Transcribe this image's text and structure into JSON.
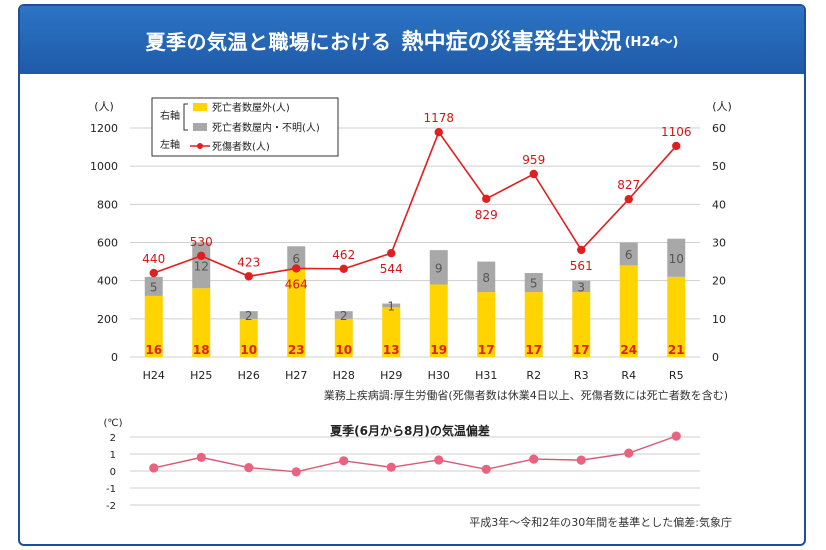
{
  "title": {
    "main": "夏季の気温と職場における",
    "strong": "熱中症の災害発生状況",
    "suffix": "(H24〜)"
  },
  "colors": {
    "header": "#1f5aa9",
    "bar_outside": "#ffd400",
    "bar_inside": "#a8a8a8",
    "line": "#e02020",
    "temp_line": "#d45a75",
    "temp_dot": "#e9637e"
  },
  "legend": {
    "right_axis_label": "右軸",
    "left_axis_label": "左軸",
    "items": [
      {
        "label": "死亡者数屋外(人)",
        "color": "#ffd400",
        "kind": "bar"
      },
      {
        "label": "死亡者数屋内・不明(人)",
        "color": "#a8a8a8",
        "kind": "bar"
      },
      {
        "label": "死傷者数(人)",
        "color": "#e02020",
        "kind": "line"
      }
    ]
  },
  "chart_data": [
    {
      "type": "bar+line",
      "categories": [
        "H24",
        "H25",
        "H26",
        "H27",
        "H28",
        "H29",
        "H30",
        "H31",
        "R2",
        "R3",
        "R4",
        "R5"
      ],
      "series": [
        {
          "name": "死亡者数屋外(人)",
          "axis": "right",
          "values": [
            16,
            18,
            10,
            23,
            10,
            13,
            19,
            17,
            17,
            17,
            24,
            21
          ]
        },
        {
          "name": "死亡者数屋内・不明(人)",
          "axis": "right",
          "values": [
            5,
            12,
            2,
            6,
            2,
            1,
            9,
            8,
            5,
            3,
            6,
            10
          ]
        },
        {
          "name": "死傷者数(人)",
          "axis": "left",
          "values": [
            440,
            530,
            423,
            464,
            462,
            544,
            1178,
            829,
            959,
            561,
            827,
            1106
          ]
        }
      ],
      "left_axis": {
        "unit": "(人)",
        "ylim": [
          0,
          1200
        ],
        "ticks": [
          0,
          200,
          400,
          600,
          800,
          1000,
          1200
        ]
      },
      "right_axis": {
        "unit": "(人)",
        "ylim": [
          0,
          60
        ],
        "ticks": [
          0,
          10,
          20,
          30,
          40,
          50,
          60
        ]
      },
      "grid": true,
      "source": "業務上疾病調:厚生労働省(死傷者数は休業4日以上、死傷者数には死亡者数を含む)"
    },
    {
      "type": "line",
      "title": "夏季(6月から8月)の気温偏差",
      "categories": [
        "H24",
        "H25",
        "H26",
        "H27",
        "H28",
        "H29",
        "H30",
        "H31",
        "R2",
        "R3",
        "R4",
        "R5"
      ],
      "values": [
        0.18,
        0.8,
        0.2,
        -0.05,
        0.6,
        0.22,
        0.65,
        0.1,
        0.7,
        0.64,
        1.05,
        2.05
      ],
      "yunit": "(℃)",
      "ylim": [
        -2,
        2
      ],
      "ticks": [
        2,
        1,
        0,
        -1,
        -2
      ],
      "grid": true,
      "source": "平成3年〜令和2年の30年間を基準とした偏差:気象庁"
    }
  ]
}
